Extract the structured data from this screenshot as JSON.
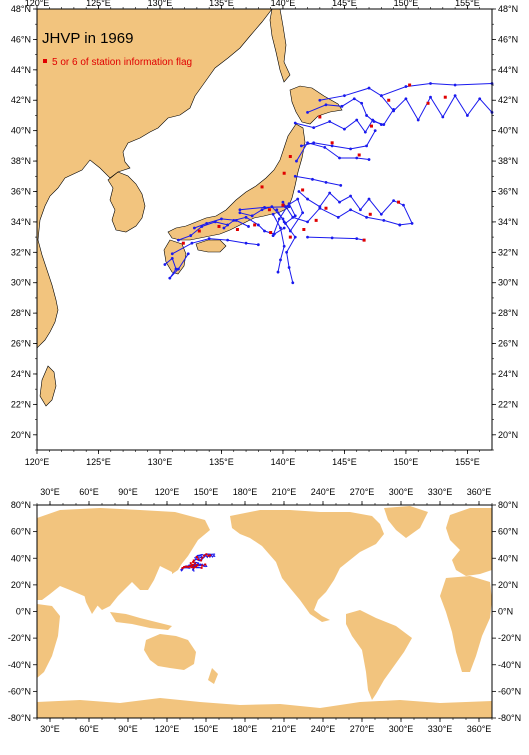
{
  "regional_map": {
    "title": "JHVP in 1969",
    "legend_label": "5 or 6 of station information flag",
    "colors": {
      "land": "#f2c47e",
      "track": "#1a1aee",
      "flag": "#e00000"
    },
    "lon_ticks": [
      "120°E",
      "125°E",
      "130°E",
      "135°E",
      "140°E",
      "145°E",
      "150°E",
      "155°E"
    ],
    "lat_ticks": [
      "20°N",
      "22°N",
      "24°N",
      "26°N",
      "28°N",
      "30°N",
      "32°N",
      "34°N",
      "36°N",
      "38°N",
      "40°N",
      "42°N",
      "44°N",
      "46°N",
      "48°N"
    ],
    "lon_range": [
      120,
      157
    ],
    "lat_range": [
      19,
      48
    ],
    "tracks": [
      [
        [
          148,
          42.3
        ],
        [
          150,
          42.9
        ],
        [
          152,
          43.1
        ],
        [
          154,
          43
        ],
        [
          157,
          43.1
        ]
      ],
      [
        [
          143,
          42
        ],
        [
          145,
          42.3
        ],
        [
          147,
          42.8
        ],
        [
          148,
          42.3
        ],
        [
          149,
          41.3
        ],
        [
          150,
          42.1
        ],
        [
          151,
          40.7
        ],
        [
          152,
          42.2
        ],
        [
          153,
          40.9
        ],
        [
          154,
          42.3
        ],
        [
          155,
          41
        ],
        [
          156,
          42.1
        ],
        [
          157,
          41.2
        ]
      ],
      [
        [
          142,
          41.2
        ],
        [
          143.5,
          41.7
        ],
        [
          144.8,
          41.6
        ],
        [
          145.8,
          42.1
        ],
        [
          146.4,
          41.8
        ],
        [
          146.8,
          41
        ],
        [
          147.4,
          40.6
        ],
        [
          148.2,
          40.4
        ],
        [
          149,
          41.4
        ]
      ],
      [
        [
          141,
          40.5
        ],
        [
          142.5,
          40.2
        ],
        [
          143.8,
          40.6
        ],
        [
          145,
          40.1
        ],
        [
          146,
          40.7
        ],
        [
          146.7,
          39.9
        ],
        [
          147.3,
          40.7
        ],
        [
          148,
          40.4
        ]
      ],
      [
        [
          141.5,
          39
        ],
        [
          142.5,
          39.2
        ],
        [
          144,
          39
        ],
        [
          145.5,
          38.8
        ],
        [
          146.8,
          39
        ],
        [
          147.5,
          40
        ]
      ],
      [
        [
          141.1,
          38
        ],
        [
          142,
          39.2
        ],
        [
          143.4,
          38.9
        ],
        [
          144.6,
          38.2
        ],
        [
          146,
          38.2
        ],
        [
          147,
          38.1
        ]
      ],
      [
        [
          141,
          37
        ],
        [
          142.4,
          36.8
        ],
        [
          143.5,
          36.6
        ],
        [
          144.7,
          36.4
        ]
      ],
      [
        [
          141.3,
          36
        ],
        [
          142,
          35.5
        ],
        [
          143,
          35
        ],
        [
          143.8,
          35.9
        ],
        [
          144.6,
          35.3
        ],
        [
          145.5,
          35.7
        ],
        [
          146.3,
          34.8
        ],
        [
          147,
          35.5
        ],
        [
          148,
          34.5
        ],
        [
          149,
          35.4
        ],
        [
          149.8,
          35.1
        ],
        [
          150.5,
          33.9
        ],
        [
          149.5,
          33.8
        ]
      ],
      [
        [
          140,
          35.3
        ],
        [
          140.8,
          34.3
        ],
        [
          142,
          34
        ],
        [
          143,
          34.9
        ],
        [
          144.5,
          34.3
        ],
        [
          145.5,
          34.8
        ],
        [
          146.8,
          34.3
        ],
        [
          148.2,
          34.1
        ],
        [
          149.5,
          33.8
        ]
      ],
      [
        [
          139.5,
          34.8
        ],
        [
          140.1,
          34
        ],
        [
          141,
          33
        ],
        [
          140.3,
          32
        ],
        [
          140.5,
          31
        ],
        [
          140.8,
          30
        ]
      ],
      [
        [
          139.2,
          34.5
        ],
        [
          139.8,
          33.6
        ],
        [
          140.1,
          32.4
        ],
        [
          139.8,
          31.5
        ],
        [
          139.6,
          30.7
        ]
      ],
      [
        [
          142,
          33
        ],
        [
          144,
          32.95
        ],
        [
          146,
          32.9
        ],
        [
          146.6,
          32.8
        ]
      ],
      [
        [
          136.5,
          34.6
        ],
        [
          137.5,
          34.4
        ],
        [
          138.3,
          34.8
        ],
        [
          139.1,
          35
        ],
        [
          140,
          34.2
        ],
        [
          140.6,
          33.4
        ],
        [
          141.6,
          34.6
        ],
        [
          141.2,
          35.5
        ],
        [
          140.2,
          35
        ]
      ],
      [
        [
          135.2,
          33.6
        ],
        [
          136,
          34.1
        ],
        [
          137,
          34.3
        ],
        [
          138,
          33.8
        ],
        [
          138.5,
          33.4
        ],
        [
          139.3,
          33.2
        ],
        [
          140.1,
          33.6
        ]
      ],
      [
        [
          132.8,
          33.6
        ],
        [
          133.8,
          33.9
        ],
        [
          135,
          34.2
        ],
        [
          136.2,
          34.1
        ],
        [
          137.2,
          33.7
        ]
      ],
      [
        [
          131.5,
          32.8
        ],
        [
          132.5,
          33.1
        ],
        [
          133.4,
          33.7
        ],
        [
          134.5,
          34
        ],
        [
          135.5,
          33.8
        ]
      ],
      [
        [
          131,
          31.9
        ],
        [
          132.6,
          32.6
        ],
        [
          134,
          32.9
        ],
        [
          135.5,
          32.8
        ],
        [
          137,
          32.6
        ],
        [
          138,
          32.5
        ]
      ],
      [
        [
          130.4,
          31.2
        ],
        [
          131,
          31.6
        ],
        [
          131.3,
          30.9
        ],
        [
          130.8,
          30.3
        ],
        [
          131.5,
          30.9
        ],
        [
          132.3,
          31.9
        ]
      ],
      [
        [
          136.5,
          34.8
        ],
        [
          138.5,
          34.95
        ],
        [
          140.5,
          35
        ]
      ],
      [
        [
          140.2,
          33.9
        ],
        [
          141,
          34.4
        ],
        [
          140.5,
          35.2
        ],
        [
          139.7,
          34.2
        ],
        [
          139.2,
          33.1
        ]
      ]
    ],
    "flags": [
      [
        140.1,
        37.2
      ],
      [
        140.6,
        38.3
      ],
      [
        141.6,
        36.1
      ],
      [
        143,
        40.9
      ],
      [
        144,
        39.2
      ],
      [
        146.2,
        38.4
      ],
      [
        147.2,
        40.3
      ],
      [
        148.6,
        42
      ],
      [
        150.3,
        43
      ],
      [
        151.8,
        41.8
      ],
      [
        153.2,
        42.2
      ],
      [
        138.3,
        36.3
      ],
      [
        140,
        35.1
      ],
      [
        138.9,
        34.8
      ],
      [
        137.7,
        33.8
      ],
      [
        139,
        33.3
      ],
      [
        136.3,
        33.5
      ],
      [
        134.8,
        33.7
      ],
      [
        133.2,
        33.4
      ],
      [
        131.9,
        32.6
      ],
      [
        140.6,
        33
      ],
      [
        143.5,
        34.9
      ],
      [
        146.6,
        32.8
      ],
      [
        147.1,
        34.5
      ],
      [
        149.4,
        35.3
      ],
      [
        142.7,
        34.1
      ],
      [
        141.7,
        33.5
      ]
    ]
  },
  "world_map": {
    "lon_ticks": [
      "30°E",
      "60°E",
      "90°E",
      "120°E",
      "150°E",
      "180°E",
      "210°E",
      "240°E",
      "270°E",
      "300°E",
      "330°E",
      "360°E"
    ],
    "lat_ticks": [
      "-80°N",
      "-60°N",
      "-40°N",
      "-20°N",
      "0°N",
      "20°N",
      "40°N",
      "60°N",
      "80°N"
    ],
    "lon_range": [
      20,
      370
    ],
    "lat_range": [
      -80,
      80
    ]
  }
}
